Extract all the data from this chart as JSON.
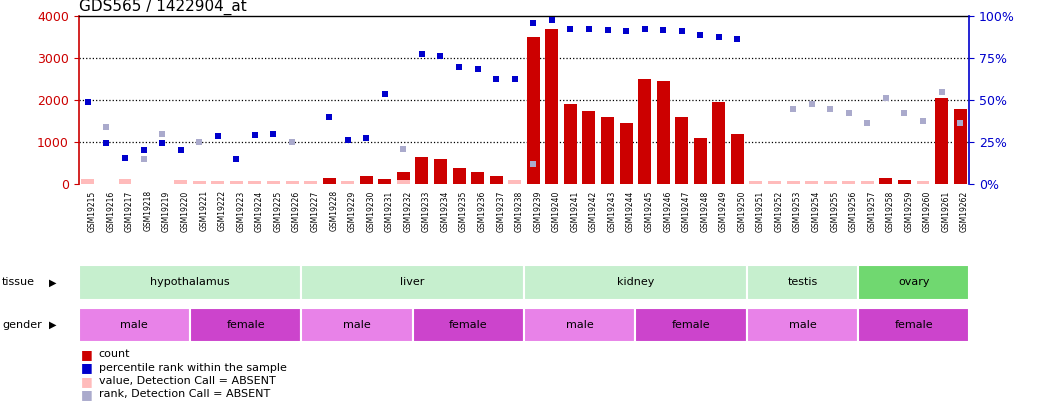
{
  "title": "GDS565 / 1422904_at",
  "samples": [
    "GSM19215",
    "GSM19216",
    "GSM19217",
    "GSM19218",
    "GSM19219",
    "GSM19220",
    "GSM19221",
    "GSM19222",
    "GSM19223",
    "GSM19224",
    "GSM19225",
    "GSM19226",
    "GSM19227",
    "GSM19228",
    "GSM19229",
    "GSM19230",
    "GSM19231",
    "GSM19232",
    "GSM19233",
    "GSM19234",
    "GSM19235",
    "GSM19236",
    "GSM19237",
    "GSM19238",
    "GSM19239",
    "GSM19240",
    "GSM19241",
    "GSM19242",
    "GSM19243",
    "GSM19244",
    "GSM19245",
    "GSM19246",
    "GSM19247",
    "GSM19248",
    "GSM19249",
    "GSM19250",
    "GSM19251",
    "GSM19252",
    "GSM19253",
    "GSM19254",
    "GSM19255",
    "GSM19256",
    "GSM19257",
    "GSM19258",
    "GSM19259",
    "GSM19260",
    "GSM19261",
    "GSM19262"
  ],
  "counts": [
    50,
    0,
    0,
    0,
    0,
    0,
    0,
    0,
    0,
    0,
    0,
    0,
    0,
    150,
    0,
    200,
    120,
    300,
    650,
    600,
    380,
    300,
    200,
    80,
    3500,
    3700,
    1900,
    1750,
    1600,
    1450,
    2500,
    2450,
    1600,
    1100,
    1950,
    1200,
    0,
    0,
    0,
    0,
    0,
    0,
    0,
    150,
    100,
    0,
    2050,
    1800
  ],
  "counts_absent": [
    120,
    0,
    120,
    0,
    0,
    100,
    80,
    80,
    80,
    80,
    80,
    80,
    80,
    0,
    80,
    0,
    0,
    100,
    0,
    0,
    0,
    0,
    0,
    100,
    0,
    0,
    0,
    0,
    0,
    0,
    0,
    0,
    0,
    0,
    0,
    0,
    80,
    80,
    80,
    80,
    80,
    80,
    80,
    0,
    0,
    80,
    0,
    0
  ],
  "percentile_present": [
    1960,
    990,
    620,
    820,
    990,
    820,
    0,
    1160,
    600,
    1180,
    1200,
    0,
    0,
    1600,
    1060,
    1110,
    2150,
    0,
    3100,
    3050,
    2780,
    2750,
    2500,
    2500,
    3840,
    3900,
    3700,
    3700,
    3680,
    3650,
    3700,
    3680,
    3650,
    3550,
    3500,
    3460,
    0,
    0,
    0,
    0,
    0,
    0,
    0,
    0,
    0,
    0,
    0,
    0
  ],
  "percentile_absent": [
    0,
    1360,
    0,
    600,
    1200,
    0,
    1010,
    0,
    0,
    0,
    0,
    1000,
    0,
    0,
    0,
    0,
    0,
    830,
    0,
    0,
    0,
    0,
    0,
    0,
    490,
    0,
    0,
    0,
    0,
    0,
    0,
    0,
    0,
    0,
    0,
    0,
    0,
    0,
    1800,
    1900,
    1800,
    1700,
    1450,
    2050,
    1700,
    1500,
    2200,
    1450
  ],
  "tissues": [
    {
      "name": "hypothalamus",
      "start": 0,
      "end": 11,
      "color": "#c6efce"
    },
    {
      "name": "liver",
      "start": 12,
      "end": 23,
      "color": "#c6efce"
    },
    {
      "name": "kidney",
      "start": 24,
      "end": 35,
      "color": "#c6efce"
    },
    {
      "name": "testis",
      "start": 36,
      "end": 41,
      "color": "#c6efce"
    },
    {
      "name": "ovary",
      "start": 42,
      "end": 47,
      "color": "#70d870"
    }
  ],
  "genders": [
    {
      "name": "male",
      "start": 0,
      "end": 5,
      "color": "#e882e8"
    },
    {
      "name": "female",
      "start": 6,
      "end": 11,
      "color": "#cc44cc"
    },
    {
      "name": "male",
      "start": 12,
      "end": 17,
      "color": "#e882e8"
    },
    {
      "name": "female",
      "start": 18,
      "end": 23,
      "color": "#cc44cc"
    },
    {
      "name": "male",
      "start": 24,
      "end": 29,
      "color": "#e882e8"
    },
    {
      "name": "female",
      "start": 30,
      "end": 35,
      "color": "#cc44cc"
    },
    {
      "name": "male",
      "start": 36,
      "end": 41,
      "color": "#e882e8"
    },
    {
      "name": "female",
      "start": 42,
      "end": 47,
      "color": "#cc44cc"
    }
  ],
  "bar_color": "#cc0000",
  "bar_absent_color": "#ffbbbb",
  "dot_color": "#0000cc",
  "dot_absent_color": "#aaaacc",
  "ylim": [
    0,
    4000
  ],
  "y_left_ticks": [
    0,
    1000,
    2000,
    3000,
    4000
  ],
  "y_right_ticks": [
    0,
    25,
    50,
    75,
    100
  ],
  "grid_values": [
    1000,
    2000,
    3000
  ],
  "background_color": "#ffffff",
  "title_fontsize": 11,
  "legend_items": [
    {
      "color": "#cc0000",
      "label": "count"
    },
    {
      "color": "#0000cc",
      "label": "percentile rank within the sample"
    },
    {
      "color": "#ffbbbb",
      "label": "value, Detection Call = ABSENT"
    },
    {
      "color": "#aaaacc",
      "label": "rank, Detection Call = ABSENT"
    }
  ]
}
